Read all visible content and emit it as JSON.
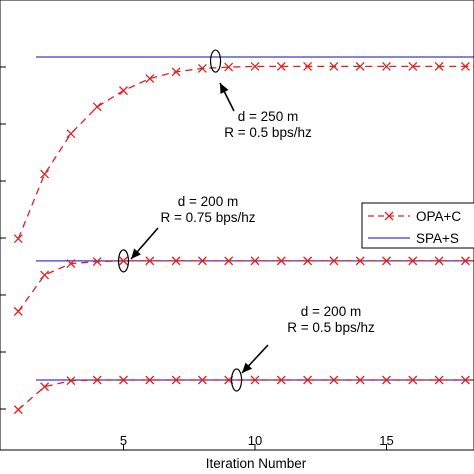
{
  "chart_data": {
    "type": "line",
    "xlabel": "Iteration Number",
    "ylabel": "",
    "xlim": [
      0,
      20
    ],
    "x_ticks": [
      5,
      10,
      15
    ],
    "grid": false,
    "legend_position": "right",
    "series": [
      {
        "name": "OPA+C",
        "color": "#dd2222",
        "style": "dashed-x",
        "groups": [
          {
            "x": [
              1,
              2,
              3,
              4,
              5,
              6,
              7,
              8,
              9,
              10,
              11,
              12,
              13,
              14,
              15,
              16,
              17,
              18,
              19,
              20
            ],
            "y": [
              15.0,
              19.8,
              22.8,
              24.8,
              26.0,
              26.9,
              27.4,
              27.65,
              27.75,
              27.8,
              27.8,
              27.8,
              27.8,
              27.8,
              27.8,
              27.8,
              27.8,
              27.8,
              27.8,
              27.8
            ]
          },
          {
            "x": [
              1,
              2,
              3,
              4,
              5,
              6,
              7,
              8,
              9,
              10,
              11,
              12,
              13,
              14,
              15,
              16,
              17,
              18,
              19,
              20
            ],
            "y": [
              9.6,
              12.3,
              13.15,
              13.3,
              13.35,
              13.35,
              13.35,
              13.35,
              13.35,
              13.35,
              13.35,
              13.35,
              13.35,
              13.35,
              13.35,
              13.35,
              13.35,
              13.35,
              13.35,
              13.35
            ]
          },
          {
            "x": [
              1,
              2,
              3,
              4,
              5,
              6,
              7,
              8,
              9,
              10,
              11,
              12,
              13,
              14,
              15,
              16,
              17,
              18,
              19,
              20
            ],
            "y": [
              2.3,
              4.0,
              4.45,
              4.5,
              4.5,
              4.5,
              4.5,
              4.5,
              4.5,
              4.5,
              4.5,
              4.5,
              4.5,
              4.5,
              4.5,
              4.5,
              4.5,
              4.5,
              4.5,
              4.5
            ]
          }
        ]
      },
      {
        "name": "SPA+S",
        "color": "#3a3ad8",
        "style": "solid",
        "groups": [
          {
            "x": [
              1,
              20
            ],
            "y": [
              28.5,
              28.5
            ]
          },
          {
            "x": [
              1,
              20
            ],
            "y": [
              13.35,
              13.35
            ]
          },
          {
            "x": [
              1,
              20
            ],
            "y": [
              4.5,
              4.5
            ]
          }
        ]
      }
    ],
    "annotations": [
      {
        "lines": [
          "d = 250 m",
          "R = 0.5 bps/hz"
        ],
        "ellipse_at": [
          8.5,
          28.2
        ]
      },
      {
        "lines": [
          "d = 200 m",
          "R = 0.75 bps/hz"
        ],
        "ellipse_at": [
          5.0,
          13.35
        ]
      },
      {
        "lines": [
          "d = 200 m",
          "R = 0.5 bps/hz"
        ],
        "ellipse_at": [
          9.3,
          4.5
        ]
      }
    ]
  }
}
